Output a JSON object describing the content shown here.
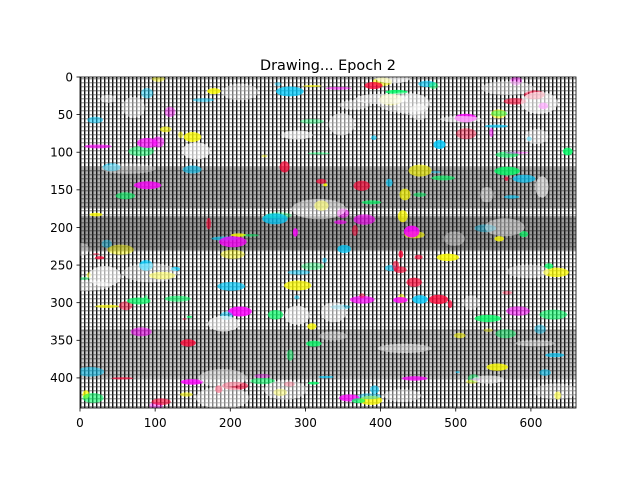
{
  "chart_data": {
    "type": "heatmap",
    "title": "Drawing... Epoch 2",
    "xlabel": "",
    "ylabel": "",
    "xlim": [
      0,
      660
    ],
    "ylim": [
      440,
      0
    ],
    "y_axis_inverted": true,
    "grid": false,
    "x_ticks": [
      0,
      100,
      200,
      300,
      400,
      500,
      600
    ],
    "y_ticks": [
      0,
      50,
      100,
      150,
      200,
      250,
      300,
      350,
      400
    ],
    "image_description_colors": [
      "#ff00ff",
      "#00ff66",
      "#ff0033",
      "#00ccff",
      "#ffff00",
      "#000000",
      "#ffffff"
    ]
  }
}
